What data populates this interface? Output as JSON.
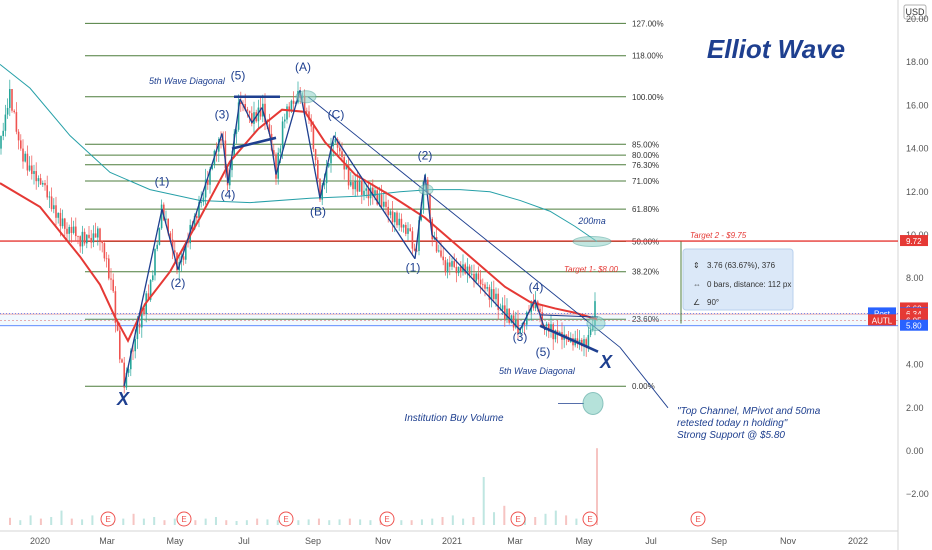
{
  "chart_data": {
    "type": "candlestick",
    "title": "Elliot Wave",
    "currency": "USD",
    "ylim": [
      -2.6,
      21.0
    ],
    "y_ticks": [
      "20.00",
      "18.00",
      "16.00",
      "14.00",
      "12.00",
      "10.00",
      "8.00",
      "6.00",
      "4.00",
      "2.00",
      "0.00",
      "−2.00"
    ],
    "x_ticks": [
      "2020",
      "Mar",
      "May",
      "Jul",
      "Sep",
      "Nov",
      "2021",
      "Mar",
      "May",
      "Jul",
      "Sep",
      "Nov",
      "2022"
    ],
    "price_path": [
      [
        0,
        14.0
      ],
      [
        10,
        16.6
      ],
      [
        20,
        13.8
      ],
      [
        40,
        12.5
      ],
      [
        60,
        10.6
      ],
      [
        80,
        9.8
      ],
      [
        100,
        10.0
      ],
      [
        112,
        7.5
      ],
      [
        124,
        3.0
      ],
      [
        135,
        5.4
      ],
      [
        150,
        7.5
      ],
      [
        162,
        11.2
      ],
      [
        178,
        8.4
      ],
      [
        200,
        11.5
      ],
      [
        222,
        14.7
      ],
      [
        228,
        12.4
      ],
      [
        240,
        16.3
      ],
      [
        252,
        15.2
      ],
      [
        262,
        15.9
      ],
      [
        270,
        14.6
      ],
      [
        276,
        12.8
      ],
      [
        285,
        15.7
      ],
      [
        300,
        16.7
      ],
      [
        310,
        15.2
      ],
      [
        320,
        11.7
      ],
      [
        334,
        14.6
      ],
      [
        350,
        12.4
      ],
      [
        370,
        12.0
      ],
      [
        390,
        11.0
      ],
      [
        410,
        9.9
      ],
      [
        415,
        8.9
      ],
      [
        425,
        12.8
      ],
      [
        432,
        10.0
      ],
      [
        445,
        8.6
      ],
      [
        465,
        8.4
      ],
      [
        485,
        7.6
      ],
      [
        505,
        6.4
      ],
      [
        520,
        5.6
      ],
      [
        535,
        7.0
      ],
      [
        545,
        5.6
      ],
      [
        560,
        5.4
      ],
      [
        580,
        5.0
      ],
      [
        590,
        5.2
      ],
      [
        596,
        6.9
      ],
      [
        597,
        6.6
      ]
    ],
    "ma50_path": [
      [
        0,
        12.4
      ],
      [
        40,
        11.3
      ],
      [
        80,
        9.0
      ],
      [
        100,
        7.7
      ],
      [
        115,
        6.2
      ],
      [
        128,
        5.1
      ],
      [
        145,
        6.8
      ],
      [
        170,
        8.3
      ],
      [
        200,
        10.8
      ],
      [
        230,
        13.4
      ],
      [
        258,
        14.9
      ],
      [
        282,
        15.8
      ],
      [
        305,
        15.7
      ],
      [
        325,
        14.3
      ],
      [
        355,
        12.8
      ],
      [
        395,
        11.7
      ],
      [
        425,
        10.8
      ],
      [
        455,
        9.6
      ],
      [
        480,
        8.6
      ],
      [
        505,
        7.6
      ],
      [
        530,
        6.9
      ],
      [
        555,
        6.6
      ],
      [
        575,
        6.4
      ],
      [
        597,
        6.1
      ]
    ],
    "ma200_path": [
      [
        0,
        17.9
      ],
      [
        30,
        16.8
      ],
      [
        70,
        14.6
      ],
      [
        110,
        12.9
      ],
      [
        150,
        12.1
      ],
      [
        200,
        11.6
      ],
      [
        250,
        11.5
      ],
      [
        310,
        11.7
      ],
      [
        360,
        11.8
      ],
      [
        400,
        12.0
      ],
      [
        430,
        12.1
      ],
      [
        460,
        12.1
      ],
      [
        490,
        12.0
      ],
      [
        520,
        11.6
      ],
      [
        550,
        11.1
      ],
      [
        575,
        10.4
      ],
      [
        597,
        9.7
      ]
    ],
    "volume": [
      0.45,
      0.3,
      0.6,
      0.4,
      0.5,
      0.9,
      0.4,
      0.35,
      0.6,
      0.5,
      0.3,
      0.4,
      0.7,
      0.4,
      0.5,
      0.3,
      0.4,
      0.35,
      0.3,
      0.4,
      0.5,
      0.3,
      0.25,
      0.3,
      0.4,
      0.35,
      0.3,
      0.25,
      0.3,
      0.35,
      0.4,
      0.3,
      0.35,
      0.4,
      0.35,
      0.3,
      0.4,
      0.35,
      0.3,
      0.3,
      0.35,
      0.4,
      0.5,
      0.6,
      0.4,
      0.5,
      3.0,
      0.8,
      1.2,
      0.6,
      0.5,
      0.5,
      0.7,
      0.9,
      0.6,
      0.4,
      0.6,
      4.8
    ],
    "fib_levels": [
      {
        "label": "127.00%",
        "value": 19.8
      },
      {
        "label": "118.00%",
        "value": 18.3
      },
      {
        "label": "100.00%",
        "value": 16.4
      },
      {
        "label": "85.00%",
        "value": 14.2
      },
      {
        "label": "80.00%",
        "value": 13.7
      },
      {
        "label": "76.30%",
        "value": 13.25
      },
      {
        "label": "71.00%",
        "value": 12.5
      },
      {
        "label": "61.80%",
        "value": 11.2
      },
      {
        "label": "50.00%",
        "value": 9.7
      },
      {
        "label": "38.20%",
        "value": 8.3
      },
      {
        "label": "23.60%",
        "value": 6.1
      },
      {
        "label": "0.00%",
        "value": 3.0
      }
    ],
    "price_labels": [
      {
        "text": "9.72",
        "value": 9.72,
        "color": "#e53935"
      },
      {
        "text": "6.60",
        "value": 6.6,
        "color": "#e53935"
      },
      {
        "text": "Post",
        "value": 6.37,
        "color": "#2962ff",
        "pre": true
      },
      {
        "text": "6.37",
        "value": 6.37,
        "color": "#2962ff"
      },
      {
        "text": "6.34",
        "value": 6.34,
        "color": "#e53935"
      },
      {
        "text": "AUTL",
        "value": 6.05,
        "color": "#e53935",
        "pre": true
      },
      {
        "text": "6.05",
        "value": 6.05,
        "color": "#e53935"
      },
      {
        "text": "5.80",
        "value": 5.8,
        "color": "#2962ff"
      }
    ],
    "wave_labels": [
      {
        "text": "(1)",
        "x": 162,
        "v": 12.3
      },
      {
        "text": "(2)",
        "x": 178,
        "v": 7.6
      },
      {
        "text": "(3)",
        "x": 222,
        "v": 15.4
      },
      {
        "text": "(4)",
        "x": 228,
        "v": 11.7
      },
      {
        "text": "(5)",
        "x": 238,
        "v": 17.2
      },
      {
        "text": "(A)",
        "x": 303,
        "v": 17.6
      },
      {
        "text": "(C)",
        "x": 336,
        "v": 15.4
      },
      {
        "text": "(B)",
        "x": 318,
        "v": 10.9
      },
      {
        "text": "(2)",
        "x": 425,
        "v": 13.5
      },
      {
        "text": "(1)",
        "x": 413,
        "v": 8.3
      },
      {
        "text": "(4)",
        "x": 536,
        "v": 7.4
      },
      {
        "text": "(3)",
        "x": 520,
        "v": 5.1
      },
      {
        "text": "(5)",
        "x": 543,
        "v": 4.4
      }
    ],
    "annotations": {
      "diag_top": "5th Wave Diagonal",
      "diag_bot": "5th Wave Diagonal",
      "x_mark": "X",
      "ma200": "200ma",
      "target1": "Target 1- $8.00",
      "target2": "Target 2 - $9.75",
      "inst_volume": "Institution Buy Volume",
      "comment": [
        "\"Top Channel, MPivot and 50ma",
        "retested today n holding\"",
        "Strong Support @ $5.80"
      ],
      "measure": [
        "3.76 (63.67%), 376",
        "0 bars, distance: 112 px",
        "90°"
      ],
      "earnings_marker": "E"
    },
    "earnings_x": [
      108,
      184,
      286,
      387,
      518,
      590,
      698
    ],
    "legend": "none",
    "grid": false,
    "colors": {
      "up": "#26a69a",
      "down": "#ef5350",
      "ma50": "#e53935",
      "ma200": "#26a0a8",
      "fib": "#4d7d3c",
      "wave": "#1e3f8f",
      "target_line": "#e53935"
    }
  }
}
